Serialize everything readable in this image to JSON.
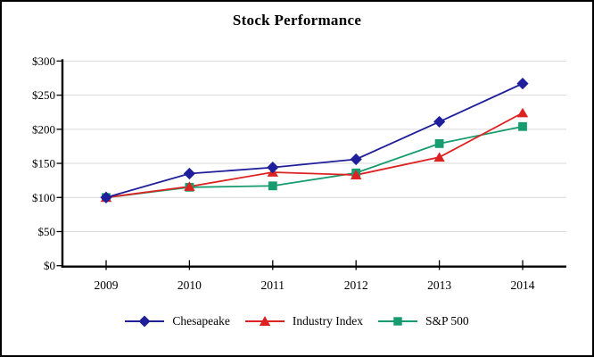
{
  "chart_data": {
    "type": "line",
    "title": "Stock Performance",
    "categories": [
      "2009",
      "2010",
      "2011",
      "2012",
      "2013",
      "2014"
    ],
    "series": [
      {
        "name": "Chesapeake",
        "marker": "diamond",
        "color": "#1F1F9C",
        "values": [
          100,
          135,
          144,
          156,
          211,
          267
        ]
      },
      {
        "name": "Industry Index",
        "marker": "triangle",
        "color": "#DD2222",
        "values": [
          100,
          116,
          137,
          133,
          159,
          224
        ]
      },
      {
        "name": "S&P 500",
        "marker": "square",
        "color": "#169C6F",
        "values": [
          100,
          115,
          117,
          136,
          179,
          204
        ]
      }
    ],
    "y_ticks": [
      0,
      50,
      100,
      150,
      200,
      250,
      300
    ],
    "y_tick_labels": [
      "$0",
      "$50",
      "$100",
      "$150",
      "$200",
      "$250",
      "$300"
    ],
    "ylim": [
      0,
      300
    ],
    "xlabel": "",
    "ylabel": "",
    "grid": "horizontal",
    "legend_position": "bottom"
  },
  "colors": {
    "background": "#FFFFFF",
    "axis": "#000000",
    "gridline": "#D9D9D9",
    "text": "#000000"
  }
}
